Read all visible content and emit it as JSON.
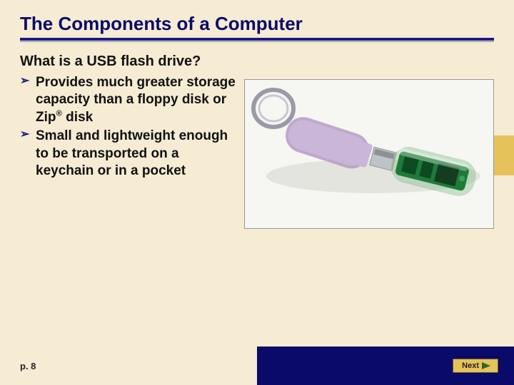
{
  "title": "The Components of a Computer",
  "subheading": "What is a USB flash drive?",
  "bullets": [
    "Provides much greater storage capacity than a floppy disk or Zip® disk",
    "Small and lightweight enough to be transported on a keychain or in a pocket"
  ],
  "page_ref": "p. 8",
  "next_label": "Next",
  "colors": {
    "background": "#f5ecd3",
    "title": "#0a0a6a",
    "underline": "#1a1a8a",
    "accent": "#e6c25a",
    "footer_blue": "#0a0a6a",
    "arrow": "#2a6a2a"
  }
}
